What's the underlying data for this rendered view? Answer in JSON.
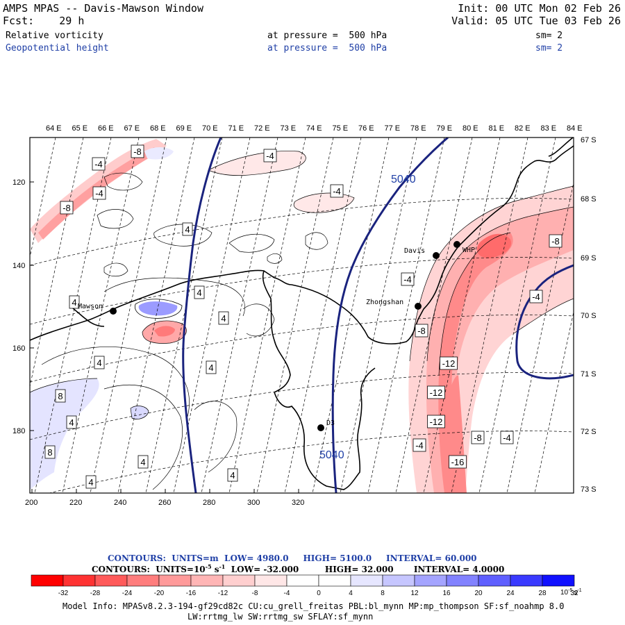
{
  "header": {
    "title": "AMPS MPAS -- Davis-Mawson Window",
    "fcst_label": "Fcst:",
    "fcst_value": "29 h",
    "init": "Init: 00 UTC Mon 02 Feb 26",
    "valid": "Valid: 05 UTC Tue 03 Feb 26",
    "fields": [
      {
        "name": "Relative vorticity",
        "level_label": "at pressure =",
        "level": "500 hPa",
        "smooth": "sm= 2",
        "color": "#000000"
      },
      {
        "name": "Geopotential height",
        "level_label": "at pressure =",
        "level": "500 hPa",
        "smooth": "sm= 2",
        "color": "#1f3fa6"
      }
    ]
  },
  "map": {
    "lon_labels": [
      "64 E",
      "65 E",
      "66 E",
      "67 E",
      "68 E",
      "69 E",
      "70 E",
      "71 E",
      "72 E",
      "73 E",
      "74 E",
      "75 E",
      "76 E",
      "77 E",
      "78 E",
      "79 E",
      "80 E",
      "81 E",
      "82 E",
      "83 E",
      "84 E"
    ],
    "lat_labels": [
      "67 S",
      "68 S",
      "69 S",
      "70 S",
      "71 S",
      "72 S",
      "73 S"
    ],
    "y_ticks": [
      "120",
      "140",
      "160",
      "180"
    ],
    "x_ticks": [
      "200",
      "220",
      "240",
      "260",
      "280",
      "300",
      "320"
    ],
    "stations": [
      {
        "name": "Mawson"
      },
      {
        "name": "Davis"
      },
      {
        "name": "WHP"
      },
      {
        "name": "Zhongshan"
      },
      {
        "name": "D3"
      }
    ],
    "height_labels": [
      "5040",
      "5040"
    ],
    "vort_labels": [
      "-8",
      "-4",
      "-4",
      "-8",
      "-4",
      "-4",
      "4",
      "4",
      "4",
      "4",
      "4",
      "4",
      "-4",
      "-8",
      "-8",
      "-4",
      "-12",
      "-12",
      "-12",
      "-16",
      "-8",
      "-4",
      "-4",
      "8",
      "4",
      "8",
      "4",
      "4",
      "4"
    ]
  },
  "colorbar": {
    "line1": {
      "prefix": "CONTOURS:",
      "units": "UNITS=m",
      "low": "LOW= 4980.0",
      "high": "HIGH= 5100.0",
      "interval": "INTERVAL= 60.000"
    },
    "line2": {
      "prefix": "CONTOURS:",
      "units_pre": "UNITS=10",
      "units_exp": "-5",
      "units_post": " s",
      "units_exp2": "-1",
      "low": "LOW= -32.000",
      "high": "HIGH= 32.000",
      "interval": "INTERVAL= 4.0000"
    },
    "colors": [
      "#ff0000",
      "#ff3232",
      "#ff5a5a",
      "#ff7d7d",
      "#ff9a9a",
      "#ffb5b5",
      "#ffcfcf",
      "#ffe7e7",
      "#ffffff",
      "#ffffff",
      "#e6e6ff",
      "#c6c6ff",
      "#a4a4ff",
      "#8282ff",
      "#5f5fff",
      "#3a3aff",
      "#1010ff"
    ],
    "labels": [
      "-32",
      "-28",
      "-24",
      "-20",
      "-16",
      "-12",
      "-8",
      "-4",
      "0",
      "4",
      "8",
      "12",
      "16",
      "20",
      "24",
      "28",
      "32"
    ],
    "unit_text": "10",
    "unit_exp": "-5",
    "unit_s": "s",
    "unit_s_exp": "-1"
  },
  "footer": {
    "line1": "Model Info: MPASv8.2.3-194-gf29cd82c CU:cu_grell_freitas PBL:bl_mynn MP:mp_thompson SF:sf_noahmp 8.0",
    "line2": "LW:rrtmg_lw SW:rrtmg_sw SFLAY:sf_mynn"
  }
}
